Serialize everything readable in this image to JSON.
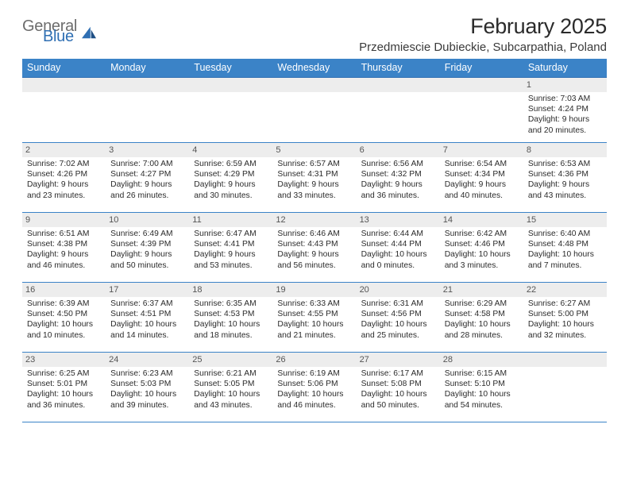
{
  "brand": {
    "text1": "General",
    "text2": "Blue",
    "color1": "#6d6d6d",
    "color2": "#2f6fb3"
  },
  "title": "February 2025",
  "location": "Przedmiescie Dubieckie, Subcarpathia, Poland",
  "theme": {
    "header_bg": "#3b83c7",
    "header_text": "#ffffff",
    "row_border": "#3b83c7",
    "daynum_bg": "#ededed",
    "daynum_text": "#555555",
    "page_bg": "#ffffff",
    "body_text": "#2b2b2b"
  },
  "daynames": [
    "Sunday",
    "Monday",
    "Tuesday",
    "Wednesday",
    "Thursday",
    "Friday",
    "Saturday"
  ],
  "weeks": [
    [
      {
        "n": "",
        "lines": []
      },
      {
        "n": "",
        "lines": []
      },
      {
        "n": "",
        "lines": []
      },
      {
        "n": "",
        "lines": []
      },
      {
        "n": "",
        "lines": []
      },
      {
        "n": "",
        "lines": []
      },
      {
        "n": "1",
        "lines": [
          "Sunrise: 7:03 AM",
          "Sunset: 4:24 PM",
          "Daylight: 9 hours",
          "and 20 minutes."
        ]
      }
    ],
    [
      {
        "n": "2",
        "lines": [
          "Sunrise: 7:02 AM",
          "Sunset: 4:26 PM",
          "Daylight: 9 hours",
          "and 23 minutes."
        ]
      },
      {
        "n": "3",
        "lines": [
          "Sunrise: 7:00 AM",
          "Sunset: 4:27 PM",
          "Daylight: 9 hours",
          "and 26 minutes."
        ]
      },
      {
        "n": "4",
        "lines": [
          "Sunrise: 6:59 AM",
          "Sunset: 4:29 PM",
          "Daylight: 9 hours",
          "and 30 minutes."
        ]
      },
      {
        "n": "5",
        "lines": [
          "Sunrise: 6:57 AM",
          "Sunset: 4:31 PM",
          "Daylight: 9 hours",
          "and 33 minutes."
        ]
      },
      {
        "n": "6",
        "lines": [
          "Sunrise: 6:56 AM",
          "Sunset: 4:32 PM",
          "Daylight: 9 hours",
          "and 36 minutes."
        ]
      },
      {
        "n": "7",
        "lines": [
          "Sunrise: 6:54 AM",
          "Sunset: 4:34 PM",
          "Daylight: 9 hours",
          "and 40 minutes."
        ]
      },
      {
        "n": "8",
        "lines": [
          "Sunrise: 6:53 AM",
          "Sunset: 4:36 PM",
          "Daylight: 9 hours",
          "and 43 minutes."
        ]
      }
    ],
    [
      {
        "n": "9",
        "lines": [
          "Sunrise: 6:51 AM",
          "Sunset: 4:38 PM",
          "Daylight: 9 hours",
          "and 46 minutes."
        ]
      },
      {
        "n": "10",
        "lines": [
          "Sunrise: 6:49 AM",
          "Sunset: 4:39 PM",
          "Daylight: 9 hours",
          "and 50 minutes."
        ]
      },
      {
        "n": "11",
        "lines": [
          "Sunrise: 6:47 AM",
          "Sunset: 4:41 PM",
          "Daylight: 9 hours",
          "and 53 minutes."
        ]
      },
      {
        "n": "12",
        "lines": [
          "Sunrise: 6:46 AM",
          "Sunset: 4:43 PM",
          "Daylight: 9 hours",
          "and 56 minutes."
        ]
      },
      {
        "n": "13",
        "lines": [
          "Sunrise: 6:44 AM",
          "Sunset: 4:44 PM",
          "Daylight: 10 hours",
          "and 0 minutes."
        ]
      },
      {
        "n": "14",
        "lines": [
          "Sunrise: 6:42 AM",
          "Sunset: 4:46 PM",
          "Daylight: 10 hours",
          "and 3 minutes."
        ]
      },
      {
        "n": "15",
        "lines": [
          "Sunrise: 6:40 AM",
          "Sunset: 4:48 PM",
          "Daylight: 10 hours",
          "and 7 minutes."
        ]
      }
    ],
    [
      {
        "n": "16",
        "lines": [
          "Sunrise: 6:39 AM",
          "Sunset: 4:50 PM",
          "Daylight: 10 hours",
          "and 10 minutes."
        ]
      },
      {
        "n": "17",
        "lines": [
          "Sunrise: 6:37 AM",
          "Sunset: 4:51 PM",
          "Daylight: 10 hours",
          "and 14 minutes."
        ]
      },
      {
        "n": "18",
        "lines": [
          "Sunrise: 6:35 AM",
          "Sunset: 4:53 PM",
          "Daylight: 10 hours",
          "and 18 minutes."
        ]
      },
      {
        "n": "19",
        "lines": [
          "Sunrise: 6:33 AM",
          "Sunset: 4:55 PM",
          "Daylight: 10 hours",
          "and 21 minutes."
        ]
      },
      {
        "n": "20",
        "lines": [
          "Sunrise: 6:31 AM",
          "Sunset: 4:56 PM",
          "Daylight: 10 hours",
          "and 25 minutes."
        ]
      },
      {
        "n": "21",
        "lines": [
          "Sunrise: 6:29 AM",
          "Sunset: 4:58 PM",
          "Daylight: 10 hours",
          "and 28 minutes."
        ]
      },
      {
        "n": "22",
        "lines": [
          "Sunrise: 6:27 AM",
          "Sunset: 5:00 PM",
          "Daylight: 10 hours",
          "and 32 minutes."
        ]
      }
    ],
    [
      {
        "n": "23",
        "lines": [
          "Sunrise: 6:25 AM",
          "Sunset: 5:01 PM",
          "Daylight: 10 hours",
          "and 36 minutes."
        ]
      },
      {
        "n": "24",
        "lines": [
          "Sunrise: 6:23 AM",
          "Sunset: 5:03 PM",
          "Daylight: 10 hours",
          "and 39 minutes."
        ]
      },
      {
        "n": "25",
        "lines": [
          "Sunrise: 6:21 AM",
          "Sunset: 5:05 PM",
          "Daylight: 10 hours",
          "and 43 minutes."
        ]
      },
      {
        "n": "26",
        "lines": [
          "Sunrise: 6:19 AM",
          "Sunset: 5:06 PM",
          "Daylight: 10 hours",
          "and 46 minutes."
        ]
      },
      {
        "n": "27",
        "lines": [
          "Sunrise: 6:17 AM",
          "Sunset: 5:08 PM",
          "Daylight: 10 hours",
          "and 50 minutes."
        ]
      },
      {
        "n": "28",
        "lines": [
          "Sunrise: 6:15 AM",
          "Sunset: 5:10 PM",
          "Daylight: 10 hours",
          "and 54 minutes."
        ]
      },
      {
        "n": "",
        "lines": []
      }
    ]
  ]
}
